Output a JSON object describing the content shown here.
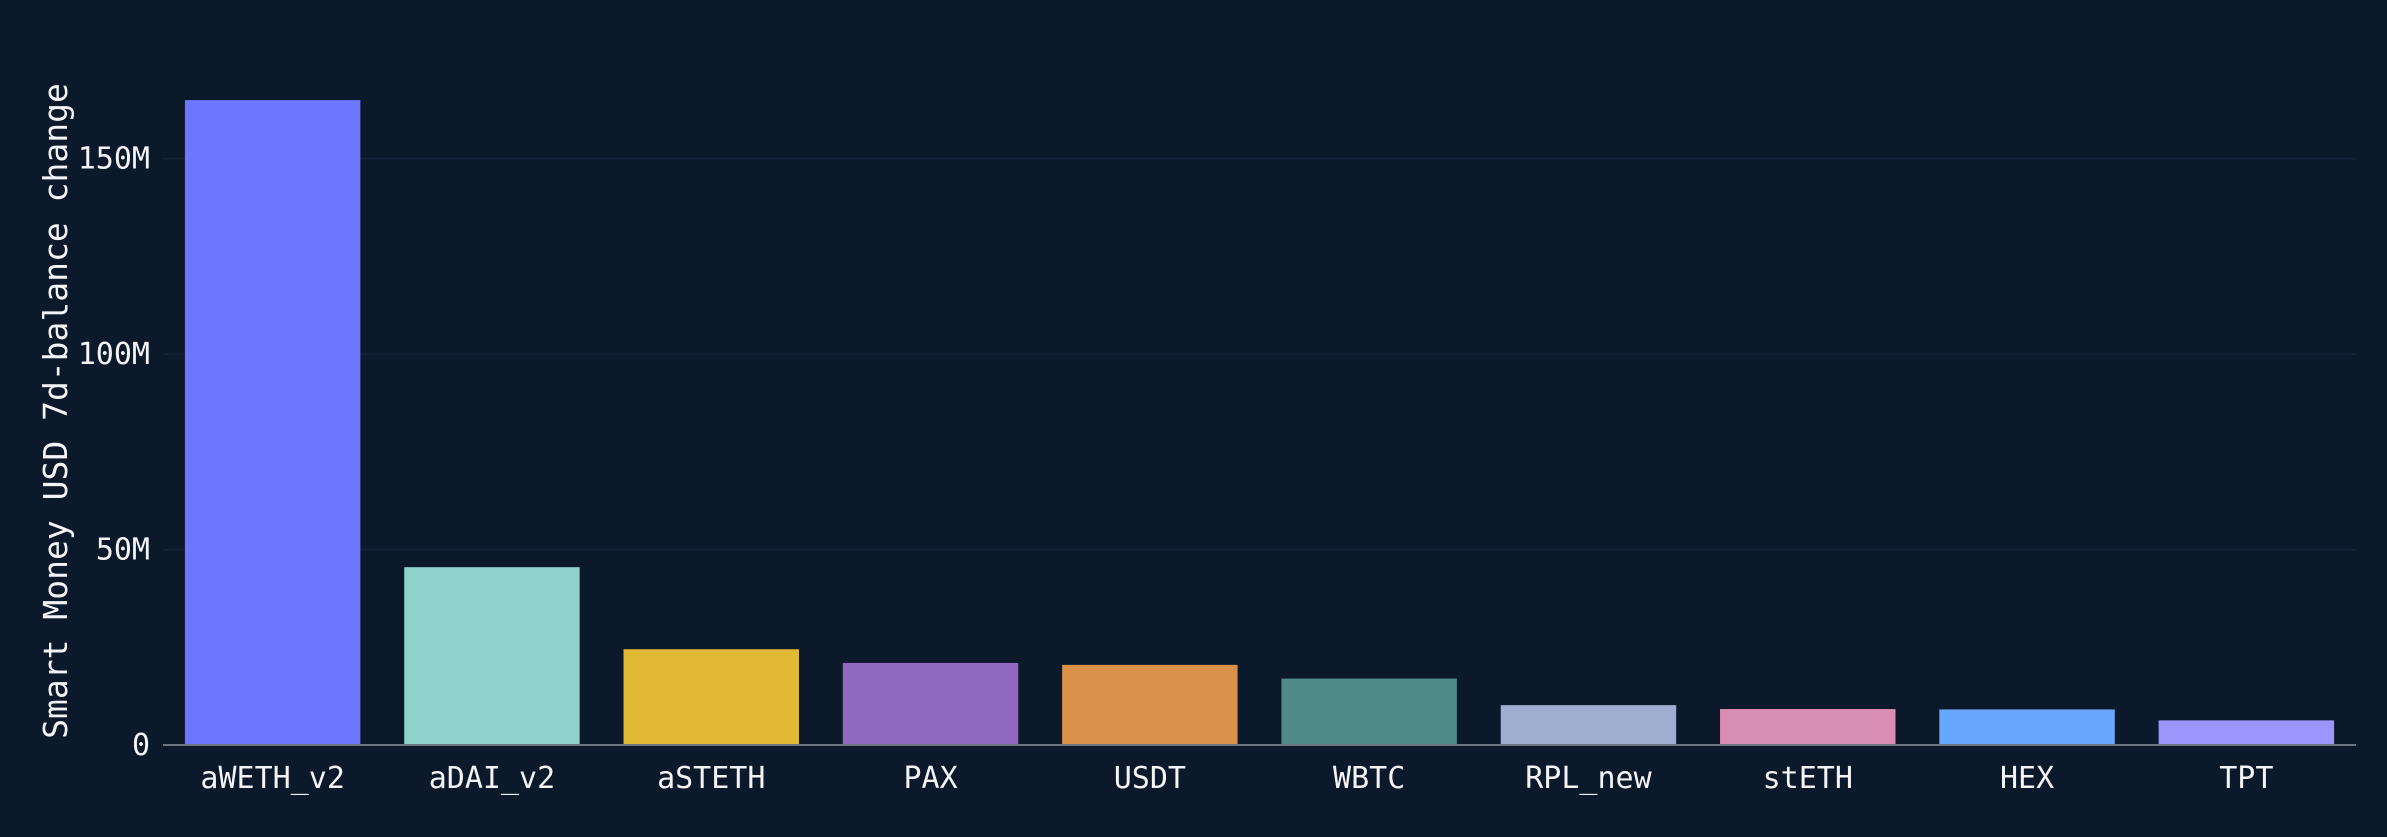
{
  "chart_data": {
    "type": "bar",
    "ylabel": "Smart Money USD 7d-balance change",
    "xlabel": "",
    "ylim": [
      0,
      175000000
    ],
    "yticks": [
      {
        "value": 0,
        "label": "0"
      },
      {
        "value": 50000000,
        "label": "50M"
      },
      {
        "value": 100000000,
        "label": "100M"
      },
      {
        "value": 150000000,
        "label": "150M"
      }
    ],
    "grid": true,
    "categories": [
      "aWETH_v2",
      "aDAI_v2",
      "aSTETH",
      "PAX",
      "USDT",
      "WBTC",
      "RPL_new",
      "stETH",
      "HEX",
      "TPT"
    ],
    "values": [
      165000000,
      45500000,
      24500000,
      21000000,
      20500000,
      17000000,
      10200000,
      9200000,
      9100000,
      6300000
    ],
    "colors": [
      "#6e77ff",
      "#8fd1cb",
      "#e2b935",
      "#9169c0",
      "#da924a",
      "#508a88",
      "#9fadd0",
      "#d88db4",
      "#67a7fd",
      "#9c95fb"
    ]
  },
  "theme": {
    "background": "#0c192b",
    "grid_color": "#16233a",
    "axis_color": "#6b7480",
    "text_color": "#f2f4f7"
  }
}
